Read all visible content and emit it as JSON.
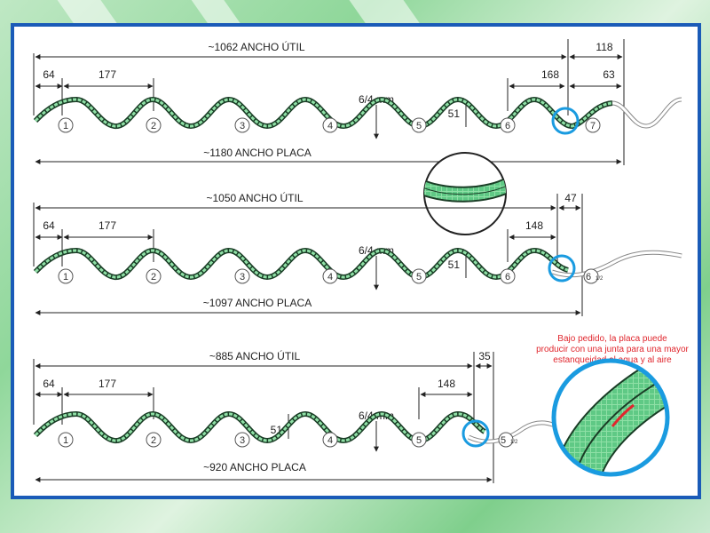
{
  "accent_blue": "#1a9be0",
  "frame_blue": "#1a5bb8",
  "note_red": "#e0262d",
  "thickness": "6/4 mm",
  "wave_height": "51",
  "panels": [
    {
      "useful_width": "~1062 ANCHO ÚTIL",
      "sheet_width": "~1180 ANCHO PLACA",
      "first_offset": "64",
      "pitch": "177",
      "overlap": "168",
      "end_overlap": "118",
      "end_small": "63",
      "waves": [
        "1",
        "2",
        "3",
        "4",
        "5",
        "6",
        "7"
      ]
    },
    {
      "useful_width": "~1050 ANCHO ÚTIL",
      "sheet_width": "~1097 ANCHO PLACA",
      "first_offset": "64",
      "pitch": "177",
      "overlap": "148",
      "end_overlap": "47",
      "waves": [
        "1",
        "2",
        "3",
        "4",
        "5",
        "6",
        "6",
        "1/2"
      ]
    },
    {
      "useful_width": "~885 ANCHO ÚTIL",
      "sheet_width": "~920 ANCHO PLACA",
      "first_offset": "64",
      "pitch": "177",
      "overlap": "148",
      "end_overlap": "35",
      "waves": [
        "1",
        "2",
        "3",
        "4",
        "5",
        "5",
        "1/2"
      ]
    }
  ],
  "note": [
    "Bajo pedido, la placa puede",
    "producir con una junta para una mayor",
    "estanqueidad al agua y al aire"
  ]
}
